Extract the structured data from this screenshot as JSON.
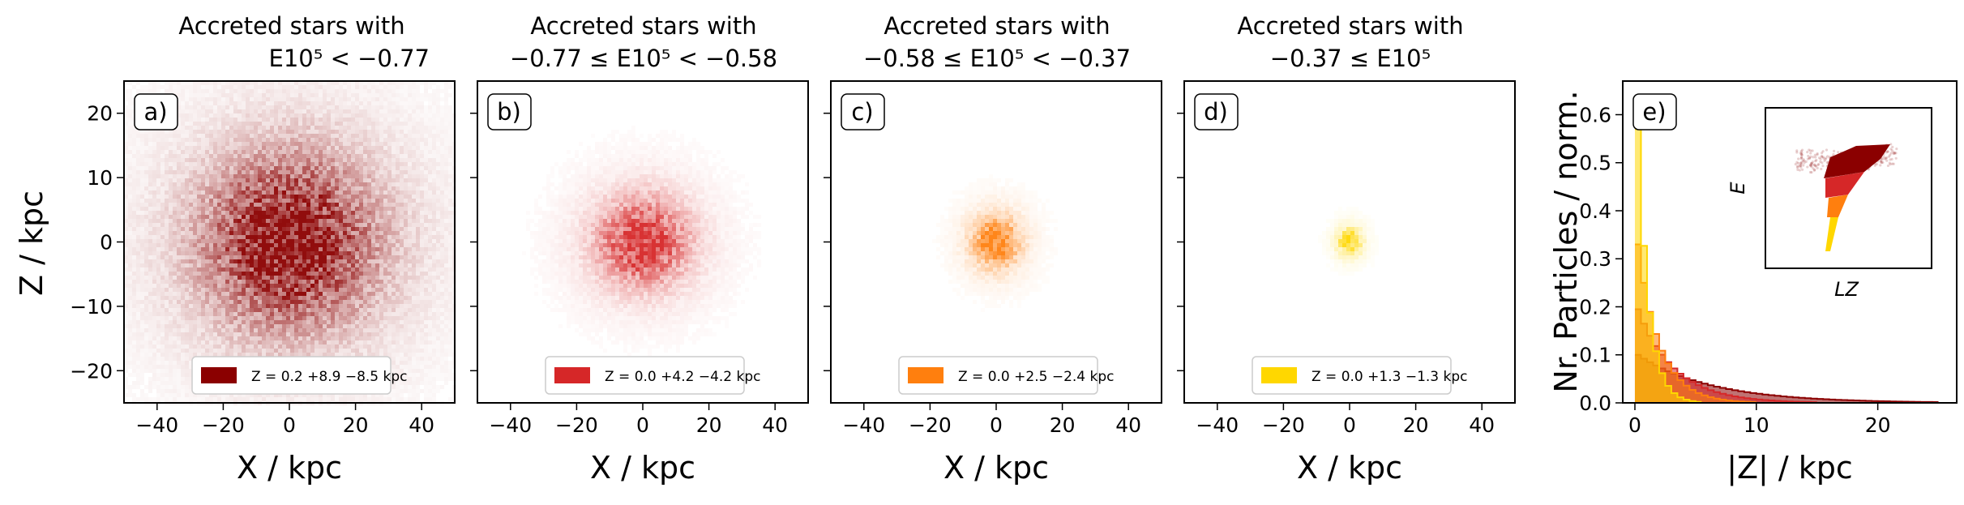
{
  "figure": {
    "common_xlabel": "X / kpc",
    "common_ylabel": "Z / kpc"
  },
  "chart_data": [
    {
      "type": "heatmap",
      "panel": "a)",
      "title_line1": "Accreted stars with",
      "title_line2": "E10⁵ < −0.77",
      "xlabel": "X / kpc",
      "ylabel": "Z / kpc",
      "xlim": [
        -50,
        50
      ],
      "ylim": [
        -25,
        25
      ],
      "xticks": [
        -40,
        -20,
        0,
        20,
        40
      ],
      "yticks": [
        -20,
        -10,
        0,
        10,
        20
      ],
      "color": "#8b0000",
      "spread": {
        "sigma_x": 17,
        "sigma_z": 8.7
      },
      "legend": {
        "label": "Z = 0.2 +8.9 −8.5 kpc",
        "median": 0.2,
        "upper": 8.9,
        "lower": 8.5,
        "location": "lower center"
      }
    },
    {
      "type": "heatmap",
      "panel": "b)",
      "title_line1": "Accreted stars with",
      "title_line2": "−0.77 ≤ E10⁵ < −0.58",
      "xlabel": "X / kpc",
      "xlim": [
        -50,
        50
      ],
      "ylim": [
        -25,
        25
      ],
      "xticks": [
        -40,
        -20,
        0,
        20,
        40
      ],
      "color": "#d62728",
      "spread": {
        "sigma_x": 8.5,
        "sigma_z": 4.2
      },
      "legend": {
        "label": "Z = 0.0 +4.2 −4.2 kpc",
        "median": 0.0,
        "upper": 4.2,
        "lower": 4.2,
        "location": "lower center"
      }
    },
    {
      "type": "heatmap",
      "panel": "c)",
      "title_line1": "Accreted stars with",
      "title_line2": "−0.58 ≤ E10⁵ < −0.37",
      "xlabel": "X / kpc",
      "xlim": [
        -50,
        50
      ],
      "ylim": [
        -25,
        25
      ],
      "xticks": [
        -40,
        -20,
        0,
        20,
        40
      ],
      "color": "#ff7f0e",
      "spread": {
        "sigma_x": 4.5,
        "sigma_z": 2.5
      },
      "legend": {
        "label": "Z = 0.0 +2.5 −2.4 kpc",
        "median": 0.0,
        "upper": 2.5,
        "lower": 2.4,
        "location": "lower center"
      }
    },
    {
      "type": "heatmap",
      "panel": "d)",
      "title_line1": "Accreted stars with",
      "title_line2": "−0.37 ≤ E10⁵",
      "xlabel": "X / kpc",
      "xlim": [
        -50,
        50
      ],
      "ylim": [
        -25,
        25
      ],
      "xticks": [
        -40,
        -20,
        0,
        20,
        40
      ],
      "color": "#ffd700",
      "spread": {
        "sigma_x": 2.2,
        "sigma_z": 1.3
      },
      "legend": {
        "label": "Z = 0.0 +1.3 −1.3 kpc",
        "median": 0.0,
        "upper": 1.3,
        "lower": 1.3,
        "location": "lower center"
      }
    },
    {
      "type": "area",
      "panel": "e)",
      "xlabel": "|Z| / kpc",
      "ylabel": "Nr. Particles / norm.",
      "xlim": [
        -1,
        26.5
      ],
      "ylim": [
        0,
        0.67
      ],
      "xticks": [
        0,
        10,
        20
      ],
      "yticks": [
        0.0,
        0.1,
        0.2,
        0.3,
        0.4,
        0.5,
        0.6
      ],
      "bin_width": 0.5,
      "series": [
        {
          "color": "#8b0000",
          "decay": 6.0,
          "peak": 0.1
        },
        {
          "color": "#d62728",
          "decay": 3.0,
          "peak": 0.195
        },
        {
          "color": "#ff7f0e",
          "decay": 1.8,
          "peak": 0.33
        },
        {
          "color": "#ffd700",
          "decay": 0.9,
          "peak": 0.57
        }
      ],
      "inset": {
        "xlabel": "LZ",
        "ylabel": "E"
      }
    }
  ]
}
